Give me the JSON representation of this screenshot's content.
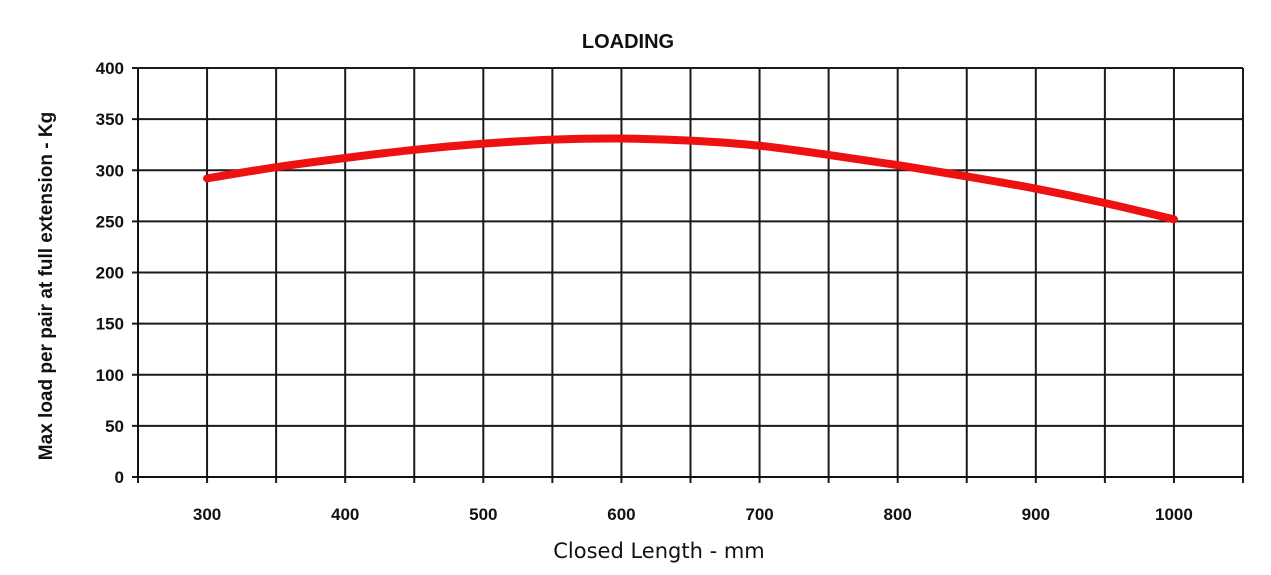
{
  "chart_data": {
    "type": "line",
    "title": "LOADING",
    "xlabel": "Closed Length - mm",
    "ylabel": "Max load per pair at full extension - Kg",
    "xlim": [
      250,
      1050
    ],
    "ylim": [
      0,
      400
    ],
    "x_ticks": [
      300,
      400,
      500,
      600,
      700,
      800,
      900,
      1000
    ],
    "y_ticks": [
      0,
      50,
      100,
      150,
      200,
      250,
      300,
      350,
      400
    ],
    "grid": true,
    "legend": "none",
    "series": [
      {
        "color": "#ee1111",
        "x": [
          300,
          350,
          400,
          450,
          500,
          550,
          600,
          650,
          700,
          750,
          800,
          850,
          900,
          950,
          1000
        ],
        "y": [
          292,
          303,
          312,
          320,
          326,
          330,
          331,
          329,
          324,
          315,
          305,
          294,
          282,
          268,
          252
        ]
      }
    ]
  }
}
